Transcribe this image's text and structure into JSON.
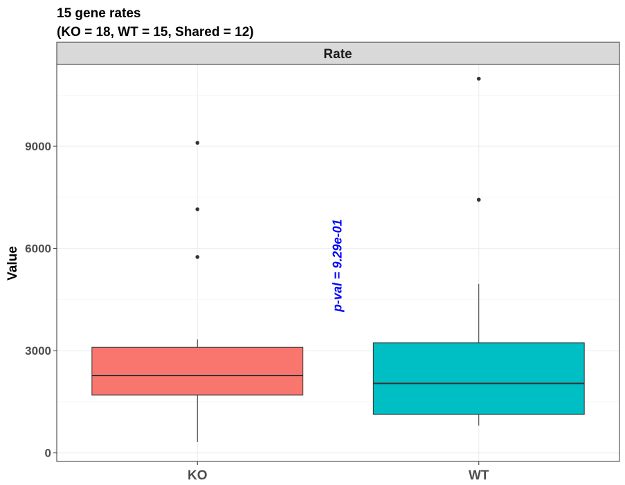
{
  "chart_data": {
    "type": "boxplot",
    "title_lines": [
      "15 gene rates",
      "(KO = 18, WT = 15, Shared = 12)"
    ],
    "facet_label": "Rate",
    "ylabel": "Value",
    "xlabel": "",
    "categories": [
      "KO",
      "WT"
    ],
    "ylim": [
      -250,
      11400
    ],
    "yticks": [
      0,
      3000,
      6000,
      9000
    ],
    "ytick_labels": [
      "0",
      "3000",
      "6000",
      "9000"
    ],
    "grid": true,
    "boxes": [
      {
        "name": "KO",
        "color": "#F8766D",
        "whisker_low": 320,
        "q1": 1700,
        "median": 2270,
        "q3": 3100,
        "whisker_high": 3330,
        "outliers": [
          5750,
          7150,
          9100
        ]
      },
      {
        "name": "WT",
        "color": "#00BFC4",
        "whisker_low": 800,
        "q1": 1130,
        "median": 2040,
        "q3": 3230,
        "whisker_high": 4960,
        "outliers": [
          7430,
          10980
        ]
      }
    ],
    "annotation": {
      "text": "p-val = 9.29e-01",
      "color": "#0000FF",
      "y": 5500
    }
  }
}
